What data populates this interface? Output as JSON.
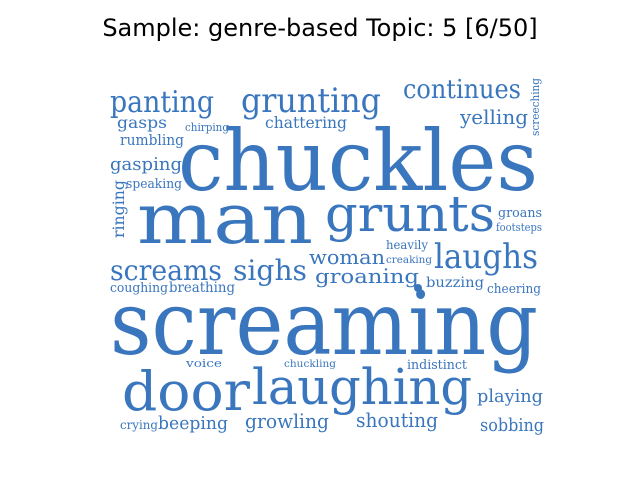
{
  "figure": {
    "title": "Sample: genre-based Topic: 5 [6/50]",
    "color": "#3a76bd"
  },
  "wordcloud": {
    "words": [
      {
        "text": "chuckles"
      },
      {
        "text": "man"
      },
      {
        "text": "screaming"
      },
      {
        "text": "grunts"
      },
      {
        "text": "laughing"
      },
      {
        "text": "door"
      },
      {
        "text": "grunting"
      },
      {
        "text": "panting"
      },
      {
        "text": "continues"
      },
      {
        "text": "laughs"
      },
      {
        "text": "screams"
      },
      {
        "text": "sighs"
      },
      {
        "text": "groaning"
      },
      {
        "text": "woman"
      },
      {
        "text": "yelling"
      },
      {
        "text": "gasping"
      },
      {
        "text": "chattering"
      },
      {
        "text": "gasps"
      },
      {
        "text": "rumbling"
      },
      {
        "text": "chirping"
      },
      {
        "text": "screeching"
      },
      {
        "text": "speaking"
      },
      {
        "text": "ringing"
      },
      {
        "text": "groans"
      },
      {
        "text": "footsteps"
      },
      {
        "text": "heavily"
      },
      {
        "text": "creaking"
      },
      {
        "text": "buzzing"
      },
      {
        "text": "coughing"
      },
      {
        "text": "breathing"
      },
      {
        "text": "cheering"
      },
      {
        "text": "voice"
      },
      {
        "text": "chuckling"
      },
      {
        "text": "indistinct"
      },
      {
        "text": "playing"
      },
      {
        "text": "crying"
      },
      {
        "text": "beeping"
      },
      {
        "text": "growling"
      },
      {
        "text": "shouting"
      },
      {
        "text": "sobbing"
      }
    ]
  }
}
